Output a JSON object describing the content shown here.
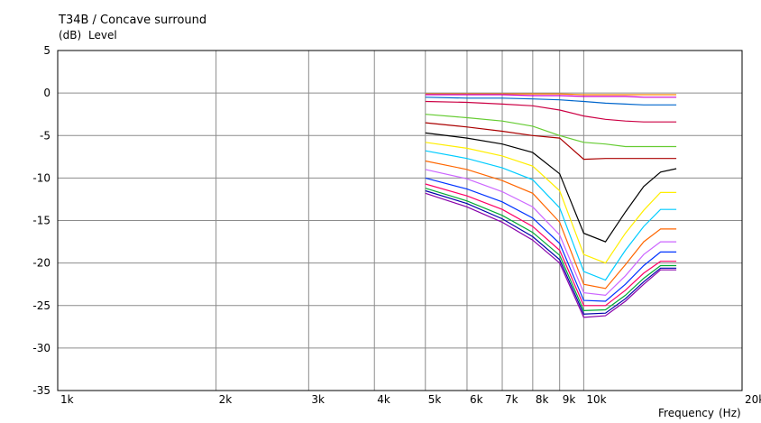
{
  "chart_data": {
    "type": "line",
    "title": "T34B / Concave surround",
    "ylabel_unit": "(dB)",
    "ylabel": "Level",
    "xlabel": "Frequency",
    "xlabel_unit": "(Hz)",
    "x_scale": "log",
    "xlim": [
      1000,
      20000
    ],
    "ylim": [
      -35,
      5
    ],
    "grid": true,
    "x_ticks": [
      {
        "value": 1000,
        "label": "1k"
      },
      {
        "value": 2000,
        "label": "2k"
      },
      {
        "value": 3000,
        "label": "3k"
      },
      {
        "value": 4000,
        "label": "4k"
      },
      {
        "value": 5000,
        "label": "5k"
      },
      {
        "value": 6000,
        "label": "6k"
      },
      {
        "value": 7000,
        "label": "7k"
      },
      {
        "value": 8000,
        "label": "8k"
      },
      {
        "value": 9000,
        "label": "9k"
      },
      {
        "value": 10000,
        "label": "10k"
      },
      {
        "value": 20000,
        "label": "20k"
      }
    ],
    "y_ticks": [
      {
        "value": 5,
        "label": "5"
      },
      {
        "value": 0,
        "label": "0"
      },
      {
        "value": -5,
        "label": "-5"
      },
      {
        "value": -10,
        "label": "-10"
      },
      {
        "value": -15,
        "label": "-15"
      },
      {
        "value": -20,
        "label": "-20"
      },
      {
        "value": -25,
        "label": "-25"
      },
      {
        "value": -30,
        "label": "-30"
      },
      {
        "value": -35,
        "label": "-35"
      }
    ],
    "x": [
      5000,
      6000,
      7000,
      8000,
      9000,
      10000,
      11000,
      12000,
      13000,
      14000,
      15000
    ],
    "series": [
      {
        "color": "#ff8800",
        "values": [
          -0.1,
          -0.1,
          -0.1,
          -0.1,
          -0.1,
          -0.2,
          -0.2,
          -0.2,
          -0.2,
          -0.2,
          -0.2
        ]
      },
      {
        "color": "#cc00cc",
        "values": [
          -0.2,
          -0.2,
          -0.2,
          -0.3,
          -0.3,
          -0.4,
          -0.4,
          -0.4,
          -0.5,
          -0.5,
          -0.5
        ]
      },
      {
        "color": "#0066cc",
        "values": [
          -0.5,
          -0.6,
          -0.6,
          -0.7,
          -0.8,
          -1.0,
          -1.2,
          -1.3,
          -1.4,
          -1.4,
          -1.4
        ]
      },
      {
        "color": "#cc0044",
        "values": [
          -1.0,
          -1.1,
          -1.3,
          -1.5,
          -2.0,
          -2.7,
          -3.1,
          -3.3,
          -3.4,
          -3.4,
          -3.4
        ]
      },
      {
        "color": "#66cc33",
        "values": [
          -2.5,
          -2.9,
          -3.3,
          -3.9,
          -5.0,
          -5.8,
          -6.0,
          -6.3,
          -6.3,
          -6.3,
          -6.3
        ]
      },
      {
        "color": "#aa0000",
        "values": [
          -3.5,
          -4.0,
          -4.5,
          -5.0,
          -5.3,
          -7.8,
          -7.7,
          -7.7,
          -7.7,
          -7.7,
          -7.7
        ]
      },
      {
        "color": "#000000",
        "values": [
          -4.7,
          -5.3,
          -6.0,
          -7.0,
          -9.5,
          -16.5,
          -17.5,
          -14.0,
          -11.0,
          -9.3,
          -8.9
        ]
      },
      {
        "color": "#ffee00",
        "values": [
          -5.8,
          -6.5,
          -7.4,
          -8.6,
          -11.5,
          -19.0,
          -20.0,
          -16.5,
          -13.8,
          -11.7,
          -11.7
        ]
      },
      {
        "color": "#00ccff",
        "values": [
          -6.8,
          -7.7,
          -8.8,
          -10.2,
          -13.5,
          -21.0,
          -22.0,
          -18.5,
          -15.7,
          -13.7,
          -13.7
        ]
      },
      {
        "color": "#ff6600",
        "values": [
          -8.0,
          -9.0,
          -10.3,
          -11.8,
          -15.2,
          -22.5,
          -23.0,
          -20.2,
          -17.5,
          -16.0,
          -16.0
        ]
      },
      {
        "color": "#cc66ff",
        "values": [
          -9.0,
          -10.1,
          -11.6,
          -13.4,
          -16.7,
          -23.5,
          -23.8,
          -21.5,
          -19.0,
          -17.5,
          -17.5
        ]
      },
      {
        "color": "#0033ff",
        "values": [
          -10.0,
          -11.3,
          -12.8,
          -14.7,
          -17.7,
          -24.4,
          -24.5,
          -22.5,
          -20.3,
          -18.7,
          -18.7
        ]
      },
      {
        "color": "#ff0066",
        "values": [
          -10.7,
          -12.1,
          -13.7,
          -15.7,
          -18.5,
          -25.0,
          -25.0,
          -23.2,
          -21.2,
          -19.8,
          -19.8
        ]
      },
      {
        "color": "#00aa33",
        "values": [
          -11.2,
          -12.7,
          -14.4,
          -16.4,
          -19.1,
          -25.6,
          -25.5,
          -23.8,
          -21.8,
          -20.3,
          -20.3
        ]
      },
      {
        "color": "#0000aa",
        "values": [
          -11.5,
          -13.0,
          -14.8,
          -16.9,
          -19.6,
          -26.0,
          -25.9,
          -24.2,
          -22.2,
          -20.6,
          -20.6
        ]
      },
      {
        "color": "#8800aa",
        "values": [
          -11.8,
          -13.4,
          -15.2,
          -17.3,
          -20.0,
          -26.4,
          -26.2,
          -24.5,
          -22.5,
          -20.8,
          -20.8
        ]
      }
    ]
  }
}
